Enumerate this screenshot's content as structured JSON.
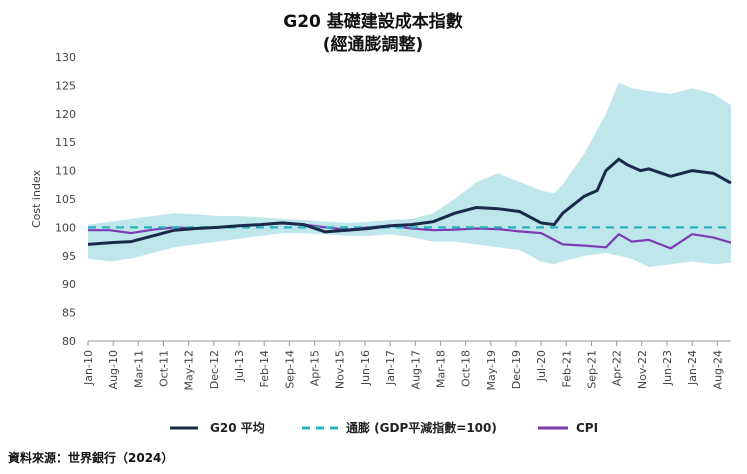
{
  "chart_data": {
    "type": "line",
    "title": "G20 基礎建設成本指數",
    "subtitle": "(經通膨調整)",
    "ylabel": "Cost index",
    "xlabel": "",
    "ylim": [
      80,
      130
    ],
    "yticks": [
      80,
      85,
      90,
      95,
      100,
      105,
      110,
      115,
      120,
      125,
      130
    ],
    "x_tick_labels": [
      "Jan-10",
      "Aug-10",
      "Mar-11",
      "Oct-11",
      "May-12",
      "Dec-12",
      "Jul-13",
      "Feb-14",
      "Sep-14",
      "Apr-15",
      "Nov-15",
      "Jun-16",
      "Jan-17",
      "Aug-17",
      "Mar-18",
      "Oct-18",
      "May-19",
      "Dec-19",
      "Jul-20",
      "Feb-21",
      "Sep-21",
      "Apr-22",
      "Nov-22",
      "Jun-23",
      "Jan-24",
      "Aug-24"
    ],
    "x_start": "Jan-10",
    "x_end": "Dec-24",
    "grid": false,
    "legend_position": "bottom",
    "source": "資料來源：世界銀行（2024）",
    "colors": {
      "g20": "#1b2a4a",
      "inflation": "#2ab3bf",
      "cpi": "#7d3bb3",
      "band": "#bfe6ea"
    },
    "series": [
      {
        "name": "G20 平均",
        "style": "solid",
        "x": [
          2010.0,
          2010.5,
          2011.0,
          2011.5,
          2012.0,
          2012.5,
          2013.0,
          2013.5,
          2014.0,
          2014.5,
          2015.0,
          2015.5,
          2016.0,
          2016.5,
          2017.0,
          2017.5,
          2018.0,
          2018.5,
          2019.0,
          2019.5,
          2020.0,
          2020.5,
          2020.8,
          2021.0,
          2021.5,
          2021.8,
          2022.0,
          2022.3,
          2022.5,
          2022.8,
          2023.0,
          2023.5,
          2024.0,
          2024.5,
          2024.9
        ],
        "values": [
          97.0,
          97.3,
          97.5,
          98.5,
          99.5,
          99.8,
          100.0,
          100.3,
          100.5,
          100.8,
          100.5,
          99.2,
          99.5,
          99.8,
          100.3,
          100.5,
          101.0,
          102.5,
          103.5,
          103.3,
          102.8,
          100.8,
          100.5,
          102.5,
          105.5,
          106.5,
          110.0,
          112.0,
          111.0,
          110.0,
          110.3,
          109.0,
          110.0,
          109.5,
          107.8
        ]
      },
      {
        "name": "通膨 (GDP平減指數=100)",
        "style": "dashed",
        "x": [
          2010.0,
          2024.9
        ],
        "values": [
          100,
          100
        ]
      },
      {
        "name": "CPI",
        "style": "solid",
        "x": [
          2010.0,
          2010.5,
          2011.0,
          2011.5,
          2012.0,
          2012.5,
          2013.0,
          2013.5,
          2014.0,
          2014.5,
          2015.0,
          2015.5,
          2016.0,
          2016.5,
          2017.0,
          2017.5,
          2018.0,
          2018.5,
          2019.0,
          2019.5,
          2020.0,
          2020.5,
          2021.0,
          2021.5,
          2022.0,
          2022.3,
          2022.6,
          2023.0,
          2023.5,
          2024.0,
          2024.5,
          2024.9
        ],
        "values": [
          99.5,
          99.5,
          99.0,
          99.6,
          100.0,
          99.8,
          100.0,
          100.3,
          100.5,
          100.7,
          100.5,
          100.0,
          99.6,
          100.0,
          100.3,
          99.8,
          99.5,
          99.6,
          99.8,
          99.7,
          99.3,
          99.0,
          97.0,
          96.8,
          96.5,
          98.8,
          97.5,
          97.8,
          96.3,
          98.8,
          98.2,
          97.3
        ]
      }
    ],
    "band": {
      "x": [
        2010.0,
        2010.5,
        2011.0,
        2011.5,
        2012.0,
        2012.5,
        2013.0,
        2013.5,
        2014.0,
        2014.5,
        2015.0,
        2015.5,
        2016.0,
        2016.5,
        2017.0,
        2017.5,
        2018.0,
        2018.5,
        2019.0,
        2019.5,
        2020.0,
        2020.5,
        2020.8,
        2021.0,
        2021.5,
        2022.0,
        2022.3,
        2022.6,
        2023.0,
        2023.5,
        2024.0,
        2024.5,
        2024.9
      ],
      "upper": [
        100.5,
        101.0,
        101.5,
        102.0,
        102.5,
        102.3,
        102.0,
        102.0,
        101.8,
        101.5,
        101.3,
        101.0,
        100.8,
        101.0,
        101.3,
        101.5,
        102.5,
        105.0,
        108.0,
        109.5,
        108.0,
        106.5,
        106.0,
        107.5,
        113.0,
        120.0,
        125.5,
        124.5,
        124.0,
        123.5,
        124.5,
        123.5,
        121.5
      ],
      "lower": [
        94.5,
        94.0,
        94.5,
        95.5,
        96.5,
        97.0,
        97.5,
        98.0,
        98.5,
        99.0,
        99.0,
        98.8,
        98.5,
        98.5,
        98.8,
        98.3,
        97.5,
        97.5,
        97.0,
        96.5,
        96.0,
        94.0,
        93.5,
        94.0,
        95.0,
        95.5,
        95.0,
        94.5,
        93.0,
        93.5,
        94.0,
        93.5,
        93.8
      ]
    }
  }
}
